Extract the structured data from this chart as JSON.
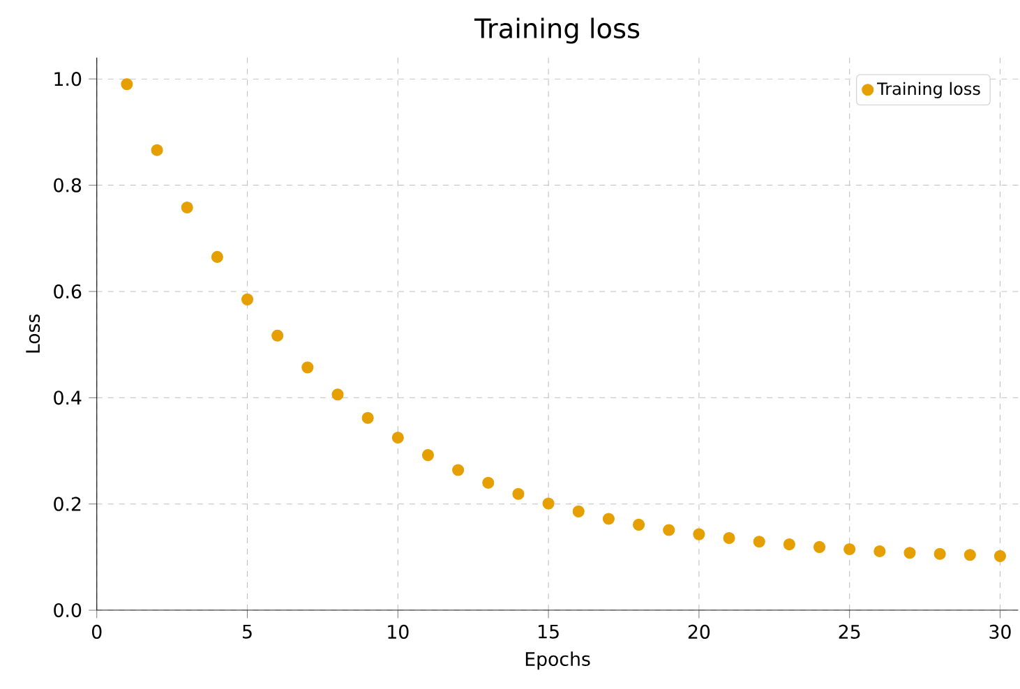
{
  "chart_data": {
    "type": "scatter",
    "title": "Training loss",
    "xlabel": "Epochs",
    "ylabel": "Loss",
    "x": [
      1,
      2,
      3,
      4,
      5,
      6,
      7,
      8,
      9,
      10,
      11,
      12,
      13,
      14,
      15,
      16,
      17,
      18,
      19,
      20,
      21,
      22,
      23,
      24,
      25,
      26,
      27,
      28,
      29,
      30
    ],
    "series": [
      {
        "name": "Training loss",
        "color": "#e69f00",
        "values": [
          0.99,
          0.866,
          0.758,
          0.665,
          0.585,
          0.517,
          0.457,
          0.406,
          0.362,
          0.325,
          0.292,
          0.264,
          0.24,
          0.219,
          0.201,
          0.186,
          0.172,
          0.161,
          0.151,
          0.143,
          0.136,
          0.129,
          0.124,
          0.119,
          0.115,
          0.111,
          0.108,
          0.106,
          0.104,
          0.102
        ]
      }
    ],
    "xlim": [
      0,
      30.6
    ],
    "ylim": [
      0,
      1.04
    ],
    "xticks": [
      0,
      5,
      10,
      15,
      20,
      25,
      30
    ],
    "yticks": [
      {
        "value": 0,
        "label": "0.0"
      },
      {
        "value": 0.2,
        "label": "0.2"
      },
      {
        "value": 0.4,
        "label": "0.4"
      },
      {
        "value": 0.6,
        "label": "0.6"
      },
      {
        "value": 0.8,
        "label": "0.8"
      },
      {
        "value": 1.0,
        "label": "1.0"
      }
    ],
    "grid": true,
    "legend": "top right"
  }
}
